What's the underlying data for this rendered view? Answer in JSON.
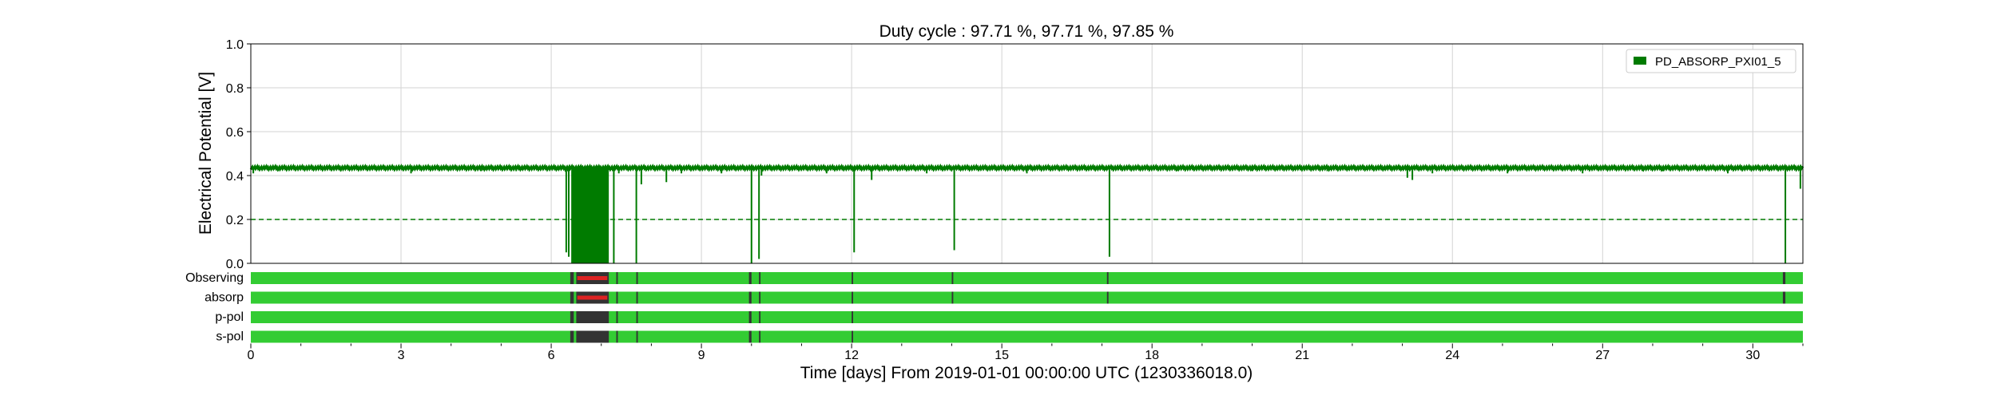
{
  "chart_data": {
    "type": "line",
    "title": "Duty cycle : 97.71 %, 97.71 %, 97.85 %",
    "xlabel": "Time [days] From 2019-01-01 00:00:00 UTC (1230336018.0)",
    "ylabel": "Electrical Potential [V]",
    "xlim": [
      0,
      31
    ],
    "ylim": [
      0,
      1.0
    ],
    "x_ticks": [
      0,
      3,
      6,
      9,
      12,
      15,
      18,
      21,
      24,
      27,
      30
    ],
    "y_ticks": [
      0.0,
      0.2,
      0.4,
      0.6,
      0.8,
      1.0
    ],
    "grid": true,
    "legend_position": "top-right",
    "threshold": 0.2,
    "colors": {
      "series": "#007b00",
      "segment_on": "#33cc33",
      "segment_off": "#333333",
      "segment_flag": "#dd2222"
    },
    "series": [
      {
        "name": "PD_ABSORP_PXI01_5",
        "baseline": 0.435,
        "dips": [
          {
            "x": 0.05,
            "y": 0.41
          },
          {
            "x": 0.55,
            "y": 0.42
          },
          {
            "x": 1.8,
            "y": 0.42
          },
          {
            "x": 3.2,
            "y": 0.41
          },
          {
            "x": 4.6,
            "y": 0.42
          },
          {
            "x": 5.3,
            "y": 0.42
          },
          {
            "x": 6.3,
            "y": 0.05
          },
          {
            "x": 6.35,
            "y": 0.03
          },
          {
            "x": 7.25,
            "y": 0.0
          },
          {
            "x": 7.35,
            "y": 0.41
          },
          {
            "x": 7.7,
            "y": 0.0
          },
          {
            "x": 7.8,
            "y": 0.36
          },
          {
            "x": 8.3,
            "y": 0.37
          },
          {
            "x": 8.6,
            "y": 0.41
          },
          {
            "x": 9.4,
            "y": 0.41
          },
          {
            "x": 10.0,
            "y": 0.0
          },
          {
            "x": 10.15,
            "y": 0.02
          },
          {
            "x": 10.2,
            "y": 0.4
          },
          {
            "x": 11.5,
            "y": 0.41
          },
          {
            "x": 12.05,
            "y": 0.05
          },
          {
            "x": 12.4,
            "y": 0.38
          },
          {
            "x": 13.5,
            "y": 0.41
          },
          {
            "x": 14.05,
            "y": 0.06
          },
          {
            "x": 15.5,
            "y": 0.41
          },
          {
            "x": 17.15,
            "y": 0.03
          },
          {
            "x": 18.5,
            "y": 0.42
          },
          {
            "x": 20.0,
            "y": 0.42
          },
          {
            "x": 21.5,
            "y": 0.42
          },
          {
            "x": 23.1,
            "y": 0.39
          },
          {
            "x": 23.2,
            "y": 0.38
          },
          {
            "x": 23.6,
            "y": 0.41
          },
          {
            "x": 25.1,
            "y": 0.41
          },
          {
            "x": 26.6,
            "y": 0.41
          },
          {
            "x": 27.8,
            "y": 0.42
          },
          {
            "x": 28.2,
            "y": 0.42
          },
          {
            "x": 29.5,
            "y": 0.41
          },
          {
            "x": 30.65,
            "y": 0.0
          },
          {
            "x": 30.95,
            "y": 0.34
          }
        ],
        "dense_region": {
          "x_start": 6.4,
          "x_end": 7.15,
          "y_min": 0.0,
          "y_max": 0.44
        }
      }
    ],
    "segments": [
      {
        "label": "Observing",
        "off": [
          [
            6.38,
            6.45
          ],
          [
            6.5,
            7.15
          ],
          [
            7.3,
            7.33
          ],
          [
            7.7,
            7.73
          ],
          [
            9.95,
            10.0
          ],
          [
            10.15,
            10.18
          ],
          [
            12.0,
            12.03
          ],
          [
            14.0,
            14.03
          ],
          [
            17.1,
            17.13
          ],
          [
            30.6,
            30.65
          ]
        ],
        "flag": [
          [
            6.52,
            7.12
          ]
        ]
      },
      {
        "label": "absorp",
        "off": [
          [
            6.38,
            6.45
          ],
          [
            6.5,
            7.15
          ],
          [
            7.3,
            7.33
          ],
          [
            7.7,
            7.73
          ],
          [
            9.95,
            10.0
          ],
          [
            10.15,
            10.18
          ],
          [
            12.0,
            12.03
          ],
          [
            14.0,
            14.03
          ],
          [
            17.1,
            17.13
          ],
          [
            30.6,
            30.65
          ]
        ],
        "flag": [
          [
            6.52,
            7.12
          ]
        ]
      },
      {
        "label": "p-pol",
        "off": [
          [
            6.38,
            6.45
          ],
          [
            6.5,
            7.15
          ],
          [
            7.3,
            7.33
          ],
          [
            7.7,
            7.73
          ],
          [
            9.95,
            10.0
          ],
          [
            10.15,
            10.18
          ],
          [
            12.0,
            12.03
          ]
        ],
        "flag": []
      },
      {
        "label": "s-pol",
        "off": [
          [
            6.38,
            6.45
          ],
          [
            6.5,
            7.15
          ],
          [
            7.3,
            7.33
          ],
          [
            7.7,
            7.73
          ],
          [
            9.95,
            10.0
          ],
          [
            10.15,
            10.18
          ],
          [
            12.0,
            12.03
          ]
        ],
        "flag": []
      }
    ]
  }
}
